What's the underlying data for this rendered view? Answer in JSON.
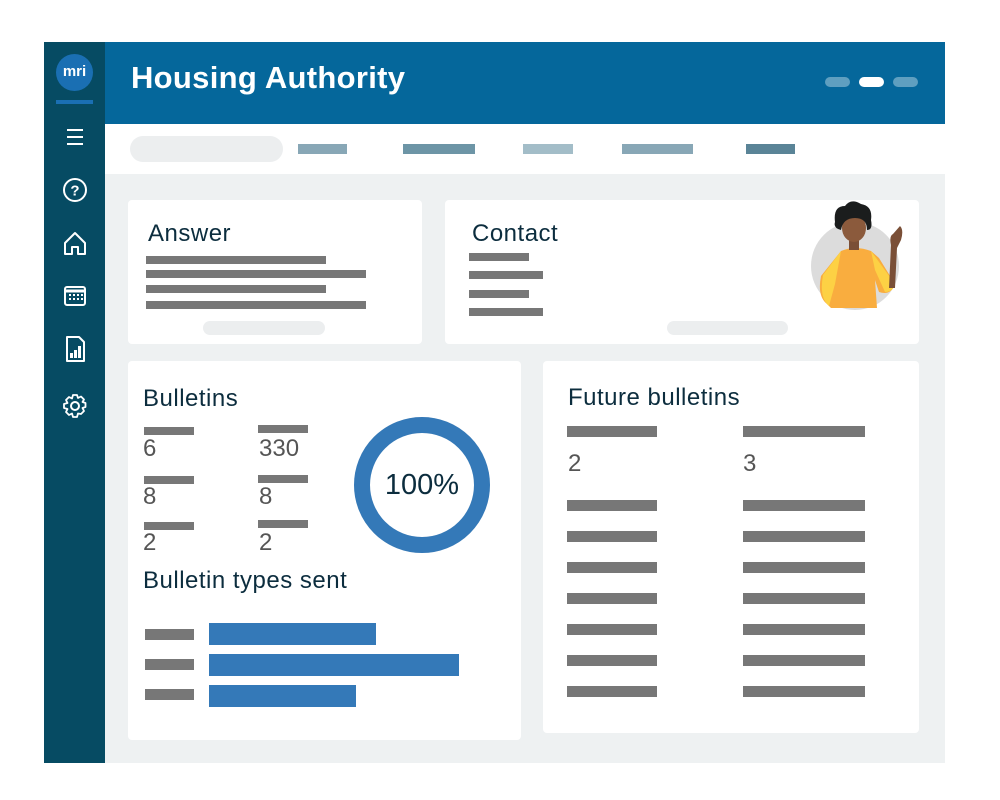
{
  "app": {
    "title": "Housing Authority",
    "logo_text": "mri"
  },
  "sidebar": {
    "items": [
      {
        "icon": "menu-icon"
      },
      {
        "icon": "help-icon"
      },
      {
        "icon": "home-icon"
      },
      {
        "icon": "calendar-icon"
      },
      {
        "icon": "report-icon"
      },
      {
        "icon": "settings-icon"
      }
    ]
  },
  "cards": {
    "answer": {
      "title": "Answer"
    },
    "contact": {
      "title": "Contact"
    },
    "bulletins": {
      "title": "Bulletins",
      "stats_col1": [
        "6",
        "8",
        "2"
      ],
      "stats_col2": [
        "330",
        "8",
        "2"
      ],
      "donut_percent": 100,
      "donut_label": "100%",
      "types_title": "Bulletin types sent",
      "types_bar_values": [
        0.6,
        0.9,
        0.53
      ]
    },
    "future": {
      "title": "Future bulletins",
      "values": [
        "2",
        "3"
      ]
    }
  },
  "colors": {
    "sidebar": "#064b63",
    "header": "#05679b",
    "accent": "#3479b8",
    "background": "#eef1f2"
  }
}
